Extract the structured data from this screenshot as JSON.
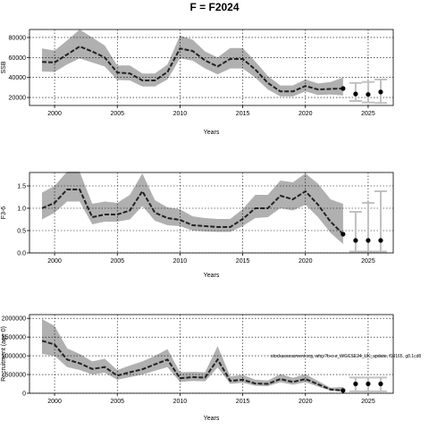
{
  "figure": {
    "title": "F = F2024",
    "note": "stockassessment.org, whg.?b-c-e_WGCSE24_UK_update, f19165, g8.1cd8"
  },
  "colors": {
    "band": "#b0b0b0",
    "line": "#222222",
    "proj_bar": "#c0c0c0",
    "grid": "#000000"
  },
  "chart_data": [
    {
      "type": "line",
      "title": "",
      "xlabel": "Years",
      "ylabel": "SSB",
      "xlim": [
        1998,
        2027
      ],
      "ylim": [
        12000,
        88000
      ],
      "xticks": [
        2000,
        2005,
        2010,
        2015,
        2020,
        2025
      ],
      "yticks": [
        20000,
        40000,
        60000,
        80000
      ],
      "ytick_labels": [
        "20000",
        "40000",
        "60000",
        "80000"
      ],
      "grid": true,
      "x": [
        1999,
        2000,
        2001,
        2002,
        2003,
        2004,
        2005,
        2006,
        2007,
        2008,
        2009,
        2010,
        2011,
        2012,
        2013,
        2014,
        2015,
        2016,
        2017,
        2018,
        2019,
        2020,
        2021,
        2022,
        2023
      ],
      "values": [
        55500,
        55000,
        63000,
        71000,
        66000,
        60000,
        45000,
        44000,
        37000,
        37000,
        45500,
        69000,
        66500,
        57000,
        51000,
        58500,
        58500,
        48000,
        34500,
        26000,
        26000,
        31500,
        28000,
        28500,
        29000
      ],
      "lower": [
        46000,
        45500,
        53000,
        59000,
        55000,
        51000,
        37500,
        37000,
        31000,
        31000,
        38000,
        59000,
        57000,
        49000,
        43000,
        49000,
        49000,
        40000,
        28000,
        21000,
        21000,
        26000,
        22500,
        23000,
        22000
      ],
      "upper": [
        69000,
        67000,
        77000,
        88000,
        80000,
        72000,
        52000,
        52000,
        44000,
        44000,
        53000,
        82000,
        78000,
        66000,
        60000,
        69500,
        69500,
        56000,
        41500,
        32000,
        32000,
        38000,
        34000,
        35500,
        40000
      ],
      "projection": {
        "x": [
          2024,
          2025,
          2026
        ],
        "values": [
          23500,
          23000,
          25500
        ],
        "lower": [
          16500,
          15000,
          14500
        ],
        "upper": [
          34500,
          35500,
          38000
        ]
      }
    },
    {
      "type": "line",
      "title": "",
      "xlabel": "Years",
      "ylabel": "F3-6",
      "xlim": [
        1998,
        2027
      ],
      "ylim": [
        0,
        1.8
      ],
      "xticks": [
        2000,
        2005,
        2010,
        2015,
        2020,
        2025
      ],
      "yticks": [
        0.0,
        0.5,
        1.0,
        1.5
      ],
      "ytick_labels": [
        "0.0",
        "0.5",
        "1.0",
        "1.5"
      ],
      "grid": true,
      "x": [
        1999,
        2000,
        2001,
        2002,
        2003,
        2004,
        2005,
        2006,
        2007,
        2008,
        2009,
        2010,
        2011,
        2012,
        2013,
        2014,
        2015,
        2016,
        2017,
        2018,
        2019,
        2020,
        2021,
        2022,
        2023
      ],
      "values": [
        1.0,
        1.12,
        1.42,
        1.42,
        0.8,
        0.86,
        0.86,
        0.95,
        1.38,
        0.9,
        0.78,
        0.74,
        0.62,
        0.6,
        0.58,
        0.58,
        0.76,
        1.0,
        1.0,
        1.28,
        1.2,
        1.38,
        1.08,
        0.7,
        0.42
      ],
      "lower": [
        0.75,
        0.9,
        1.15,
        1.15,
        0.64,
        0.7,
        0.7,
        0.75,
        1.05,
        0.72,
        0.62,
        0.6,
        0.5,
        0.48,
        0.47,
        0.47,
        0.6,
        0.78,
        0.8,
        1.0,
        0.95,
        1.08,
        0.8,
        0.45,
        0.2
      ],
      "upper": [
        1.35,
        1.5,
        1.82,
        1.82,
        1.1,
        1.15,
        1.12,
        1.3,
        1.78,
        1.18,
        1.02,
        0.98,
        0.82,
        0.78,
        0.76,
        0.76,
        0.98,
        1.3,
        1.3,
        1.62,
        1.58,
        1.78,
        1.55,
        1.2,
        1.1
      ],
      "projection": {
        "x": [
          2024,
          2025,
          2026
        ],
        "values": [
          0.28,
          0.28,
          0.28
        ],
        "lower": [
          0.03,
          0.03,
          0.03
        ],
        "upper": [
          0.92,
          1.12,
          1.38
        ]
      }
    },
    {
      "type": "line",
      "title": "",
      "xlabel": "Years",
      "ylabel": "Recruitment (age 0)",
      "xlim": [
        1998,
        2027
      ],
      "ylim": [
        0,
        2100000
      ],
      "xticks": [
        2000,
        2005,
        2010,
        2015,
        2020,
        2025
      ],
      "yticks": [
        0,
        500000,
        1000000,
        1500000,
        2000000
      ],
      "ytick_labels": [
        "0",
        "500000",
        "1000000",
        "1500000",
        "2000000"
      ],
      "grid": true,
      "x": [
        1999,
        2000,
        2001,
        2002,
        2003,
        2004,
        2005,
        2006,
        2007,
        2008,
        2009,
        2010,
        2011,
        2012,
        2013,
        2014,
        2015,
        2016,
        2017,
        2018,
        2019,
        2020,
        2021,
        2022,
        2023
      ],
      "values": [
        1400000,
        1300000,
        900000,
        800000,
        650000,
        700000,
        470000,
        560000,
        640000,
        770000,
        900000,
        400000,
        430000,
        420000,
        900000,
        330000,
        360000,
        260000,
        250000,
        380000,
        300000,
        380000,
        240000,
        100000,
        75000
      ],
      "lower": [
        1050000,
        1000000,
        700000,
        620000,
        500000,
        550000,
        360000,
        430000,
        500000,
        600000,
        700000,
        300000,
        330000,
        320000,
        690000,
        250000,
        280000,
        200000,
        190000,
        290000,
        230000,
        290000,
        180000,
        70000,
        40000
      ],
      "upper": [
        1980000,
        1800000,
        1200000,
        1050000,
        850000,
        920000,
        620000,
        740000,
        850000,
        1000000,
        1180000,
        560000,
        570000,
        560000,
        1260000,
        450000,
        490000,
        360000,
        340000,
        510000,
        410000,
        510000,
        330000,
        150000,
        170000
      ],
      "projection": {
        "x": [
          2024,
          2025,
          2026
        ],
        "values": [
          250000,
          250000,
          250000
        ],
        "lower": [
          50000,
          50000,
          50000
        ],
        "upper": [
          420000,
          420000,
          420000
        ]
      }
    }
  ]
}
